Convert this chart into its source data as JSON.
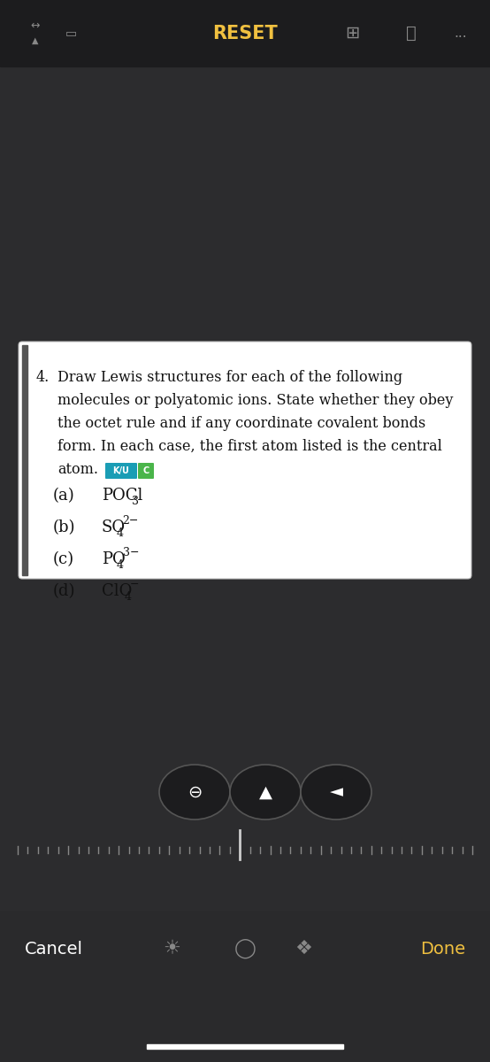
{
  "bg_dark": "#3a3a3c",
  "bg_darker": "#2c2c2e",
  "bg_card": "#ffffff",
  "toolbar_bg": "#1c1c1e",
  "toolbar_text": "#f0c040",
  "toolbar_icons_color": "#888888",
  "reset_text": "RESET",
  "cancel_text": "Cancel",
  "done_text": "Done",
  "done_color": "#f0c040",
  "question_number": "4.",
  "question_text_line1": "Draw Lewis structures for each of the following",
  "question_text_line2": "molecules or polyatomic ions. State whether they obey",
  "question_text_line3": "the octet rule and if any coordinate covalent bonds",
  "question_text_line4": "form. In each case, the first atom listed is the central",
  "question_text_line5": "atom.",
  "ku_label": "K/U",
  "c_label": "C",
  "ku_bg": "#1a9db5",
  "c_bg": "#4ab54a",
  "items": [
    {
      "label": "(a)",
      "formula": "POCl",
      "sub": "3",
      "sup": ""
    },
    {
      "label": "(b)",
      "formula": "SO",
      "sub": "4",
      "sup": "2−"
    },
    {
      "label": "(c)",
      "formula": "PO",
      "sub": "4",
      "sup": "3−"
    },
    {
      "label": "(d)",
      "formula": "ClO",
      "sub": "4",
      "sup": "−"
    }
  ],
  "figsize": [
    5.54,
    12.0
  ],
  "dpi": 100
}
